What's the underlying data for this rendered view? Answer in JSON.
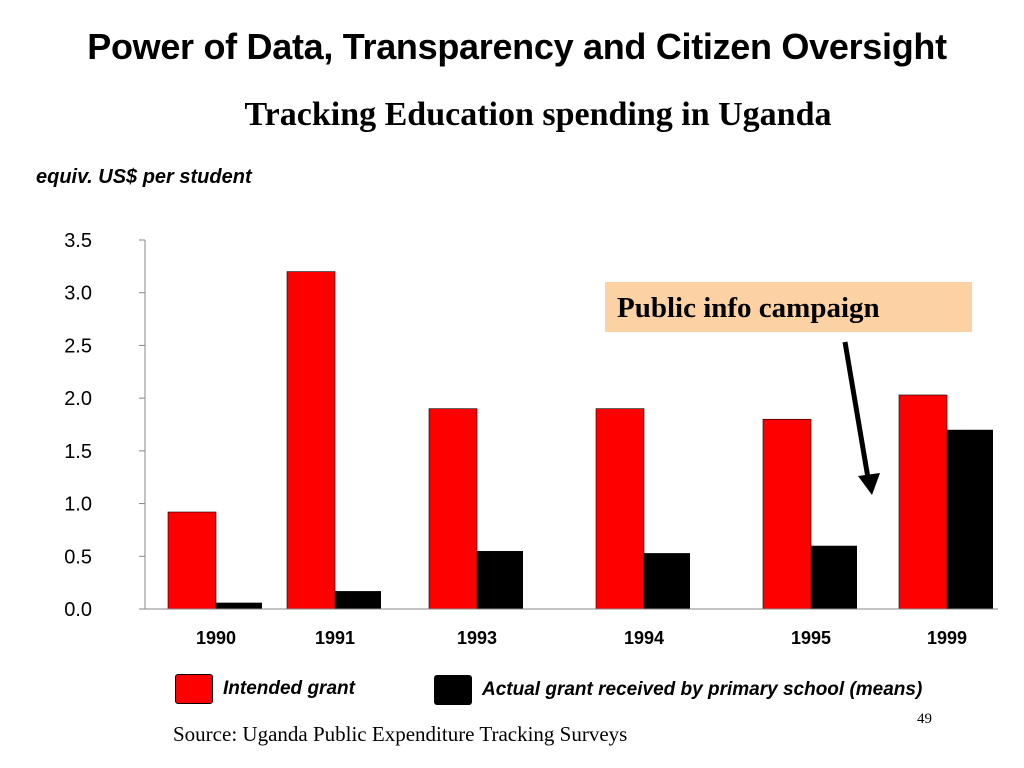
{
  "slide": {
    "title": "Power of Data, Transparency and Citizen Oversight",
    "subtitle": "Tracking Education spending in Uganda",
    "unit_label": "equiv. US$ per student",
    "source": "Source: Uganda Public Expenditure Tracking Surveys",
    "page_number": "49"
  },
  "callout": {
    "text": "Public info campaign"
  },
  "chart_data": {
    "type": "bar",
    "title": "Tracking Education spending in Uganda",
    "ylabel": "equiv. US$ per student",
    "xlabel": "",
    "categories": [
      "1990",
      "1991",
      "1993",
      "1994",
      "1995",
      "1999"
    ],
    "series": [
      {
        "name": "Intended grant",
        "color": "#ff0000",
        "values": [
          0.92,
          3.2,
          1.9,
          1.9,
          1.8,
          2.03
        ]
      },
      {
        "name": "Actual grant received by primary school (means)",
        "color": "#000000",
        "values": [
          0.06,
          0.17,
          0.55,
          0.53,
          0.6,
          1.7
        ]
      }
    ],
    "ylim": [
      0,
      3.5
    ],
    "yticks": [
      "0.0",
      "0.5",
      "1.0",
      "1.5",
      "2.0",
      "2.5",
      "3.0",
      "3.5"
    ],
    "grid": false,
    "legend_position": "bottom",
    "annotations": [
      "Public info campaign"
    ]
  }
}
